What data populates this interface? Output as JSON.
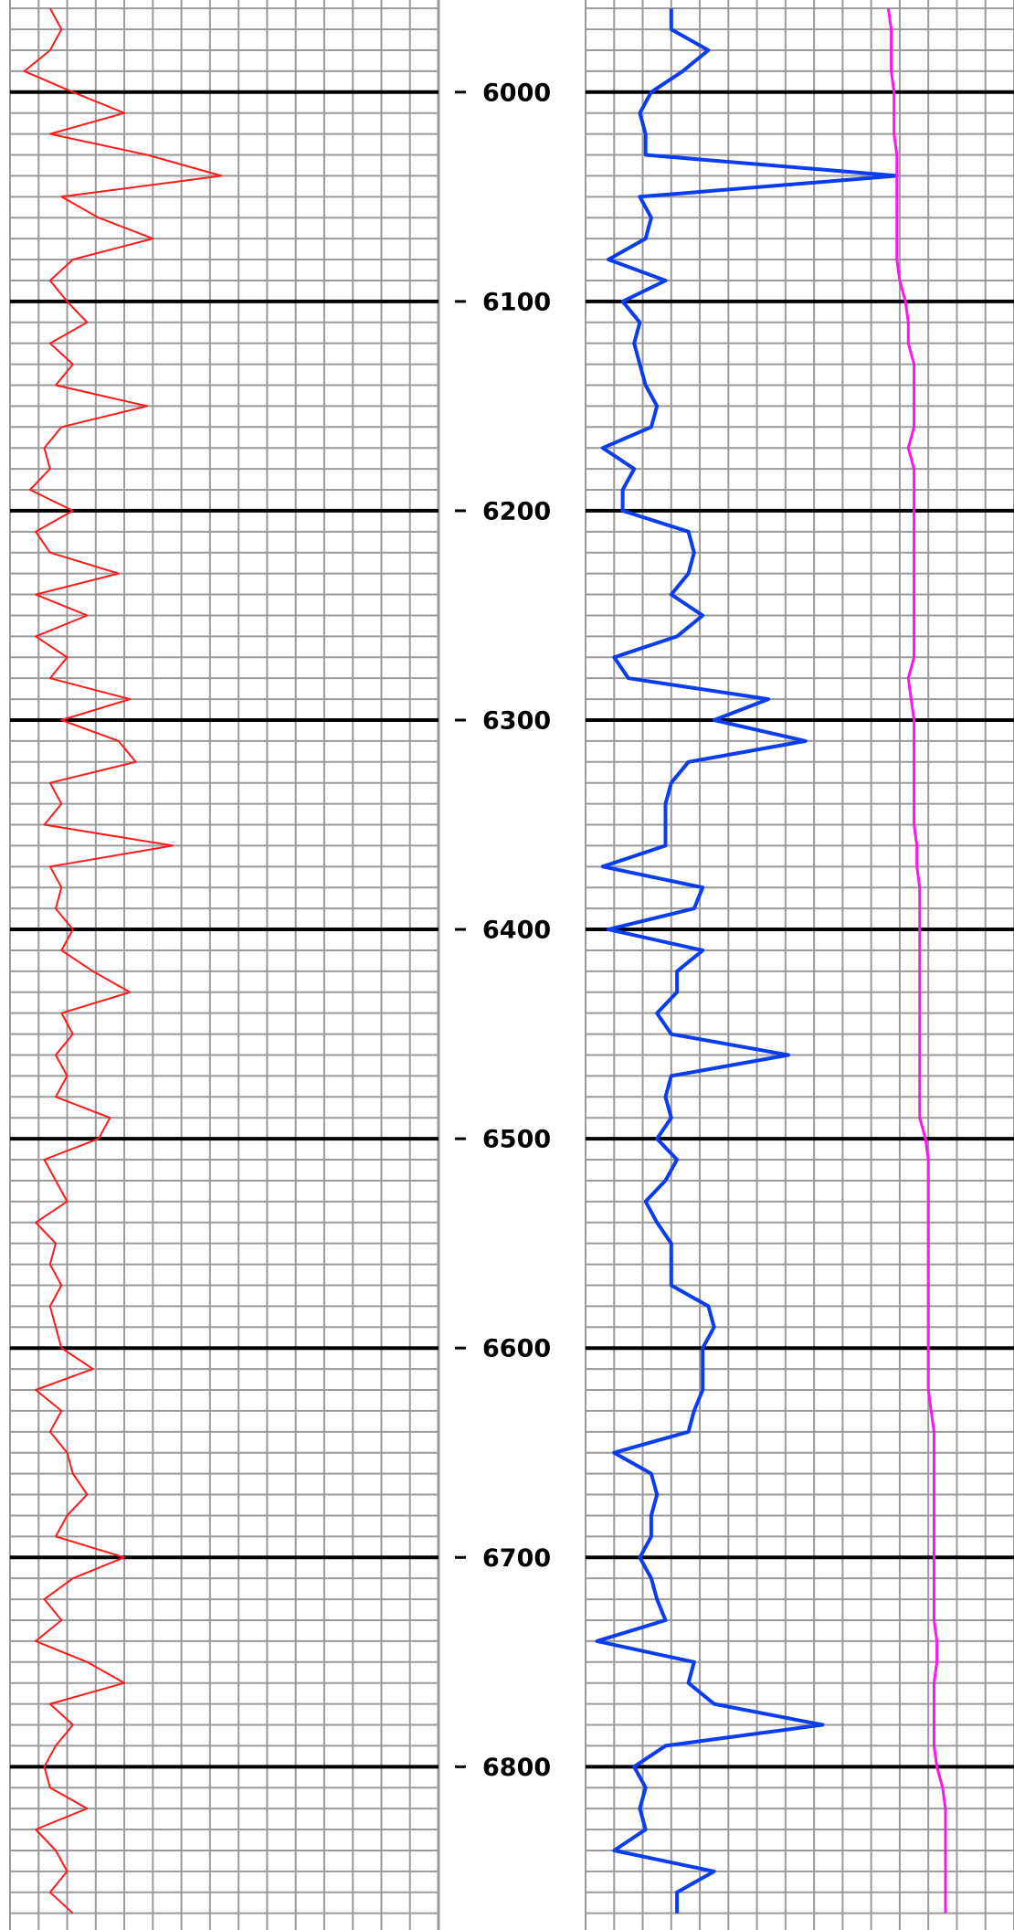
{
  "chart_data": {
    "type": "line",
    "orientation": "vertical",
    "grid": true,
    "ylim": [
      5956,
      6878
    ],
    "yticks": [
      6000,
      6100,
      6200,
      6300,
      6400,
      6500,
      6600,
      6700,
      6800
    ],
    "depth": [
      5960,
      5970,
      5980,
      5990,
      6000,
      6010,
      6020,
      6030,
      6040,
      6050,
      6060,
      6070,
      6080,
      6090,
      6100,
      6110,
      6120,
      6130,
      6140,
      6150,
      6160,
      6170,
      6180,
      6190,
      6200,
      6210,
      6220,
      6230,
      6240,
      6250,
      6260,
      6270,
      6280,
      6290,
      6300,
      6310,
      6320,
      6330,
      6340,
      6350,
      6360,
      6370,
      6380,
      6390,
      6400,
      6410,
      6420,
      6430,
      6440,
      6450,
      6460,
      6470,
      6480,
      6490,
      6500,
      6510,
      6520,
      6530,
      6540,
      6550,
      6560,
      6570,
      6580,
      6590,
      6600,
      6610,
      6620,
      6630,
      6640,
      6650,
      6660,
      6670,
      6680,
      6690,
      6700,
      6710,
      6720,
      6730,
      6740,
      6750,
      6760,
      6770,
      6780,
      6790,
      6800,
      6810,
      6820,
      6830,
      6840,
      6850,
      6860,
      6870
    ],
    "tracks": [
      {
        "xlim": [
          0,
          150
        ],
        "series": [
          {
            "color": "#ff1a1a",
            "width": 2,
            "values": [
              14,
              18,
              14,
              5,
              22,
              40,
              14,
              48,
              74,
              18,
              31,
              50,
              22,
              14,
              20,
              27,
              14,
              22,
              16,
              48,
              18,
              12,
              14,
              7,
              22,
              9,
              14,
              38,
              9,
              27,
              9,
              20,
              14,
              42,
              18,
              38,
              44,
              14,
              18,
              12,
              57,
              14,
              18,
              16,
              22,
              18,
              29,
              42,
              18,
              22,
              16,
              20,
              16,
              35,
              31,
              12,
              16,
              20,
              9,
              16,
              14,
              18,
              14,
              16,
              18,
              29,
              9,
              18,
              14,
              20,
              22,
              27,
              20,
              16,
              40,
              22,
              12,
              18,
              9,
              27,
              40,
              14,
              22,
              16,
              12,
              14,
              27,
              9,
              16,
              20,
              14,
              22
            ]
          }
        ]
      },
      {
        "xlim": [
          0,
          150
        ],
        "series": [
          {
            "color": "#0a3cf0",
            "width": 4,
            "values": [
              30,
              30,
              43,
              34,
              23,
              19,
              21,
              21,
              109,
              19,
              23,
              21,
              8,
              28,
              13,
              19,
              17,
              19,
              21,
              25,
              23,
              6,
              17,
              13,
              13,
              36,
              38,
              36,
              30,
              41,
              32,
              10,
              15,
              64,
              45,
              77,
              36,
              30,
              28,
              28,
              28,
              6,
              41,
              38,
              8,
              41,
              32,
              32,
              25,
              30,
              71,
              30,
              28,
              30,
              25,
              32,
              28,
              21,
              25,
              30,
              30,
              30,
              43,
              45,
              41,
              41,
              41,
              38,
              36,
              10,
              23,
              25,
              23,
              23,
              19,
              23,
              25,
              28,
              4,
              38,
              36,
              45,
              83,
              28,
              17,
              21,
              19,
              21,
              10,
              45,
              32,
              32
            ]
          },
          {
            "color": "#ff14f0",
            "width": 3,
            "values": [
              106,
              107,
              107,
              107,
              108,
              108,
              108,
              109,
              109,
              109,
              109,
              109,
              109,
              110,
              112,
              113,
              113,
              115,
              115,
              115,
              115,
              113,
              115,
              115,
              115,
              115,
              115,
              115,
              115,
              115,
              115,
              115,
              113,
              114,
              115,
              115,
              115,
              115,
              115,
              115,
              116,
              116,
              117,
              117,
              117,
              117,
              117,
              117,
              117,
              117,
              117,
              117,
              117,
              117,
              119,
              120,
              120,
              120,
              120,
              120,
              120,
              120,
              120,
              120,
              120,
              120,
              120,
              121,
              122,
              122,
              122,
              122,
              122,
              122,
              122,
              122,
              122,
              122,
              123,
              123,
              122,
              122,
              122,
              122,
              123,
              125,
              126,
              126,
              126,
              126,
              126,
              126
            ]
          }
        ]
      }
    ]
  }
}
